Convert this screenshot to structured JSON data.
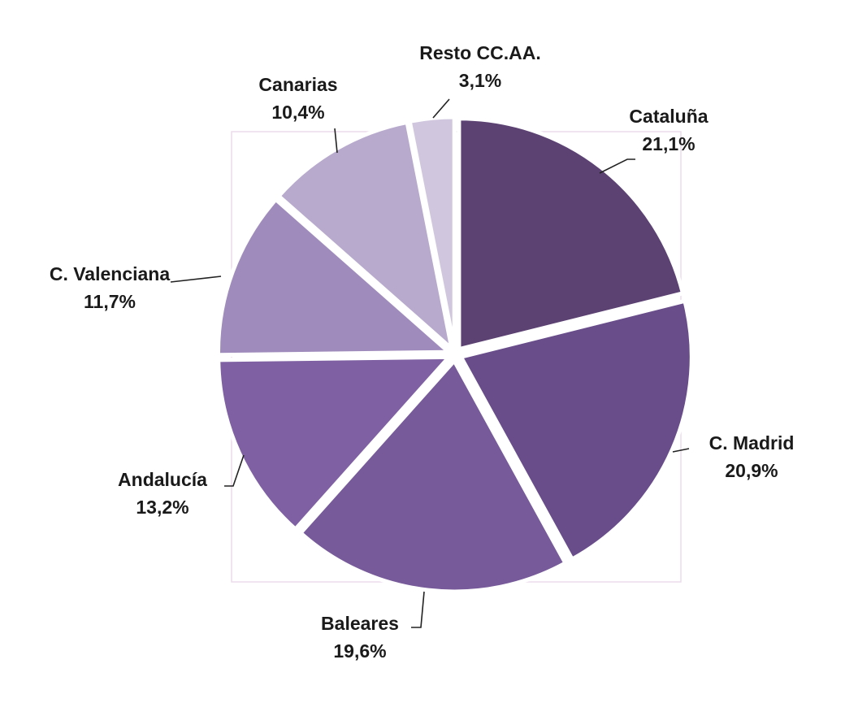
{
  "chart_data": {
    "type": "pie",
    "title": "",
    "start_angle": "12 o'clock",
    "direction": "clockwise",
    "slices": [
      {
        "label": "Cataluña",
        "value": 21.1,
        "text": "21,1%",
        "color": "#5c4273"
      },
      {
        "label": "C. Madrid",
        "value": 20.9,
        "text": "20,9%",
        "color": "#694d8a"
      },
      {
        "label": "Baleares",
        "value": 19.6,
        "text": "19,6%",
        "color": "#765a99"
      },
      {
        "label": "Andalucía",
        "value": 13.2,
        "text": "13,2%",
        "color": "#7f61a3"
      },
      {
        "label": "C. Valenciana",
        "value": 11.7,
        "text": "11,7%",
        "color": "#a08cbc"
      },
      {
        "label": "Canarias",
        "value": 10.4,
        "text": "10,4%",
        "color": "#b8aacd"
      },
      {
        "label": "Resto CC.AA.",
        "value": 3.1,
        "text": "3,1%",
        "color": "#d0c7de"
      }
    ]
  }
}
